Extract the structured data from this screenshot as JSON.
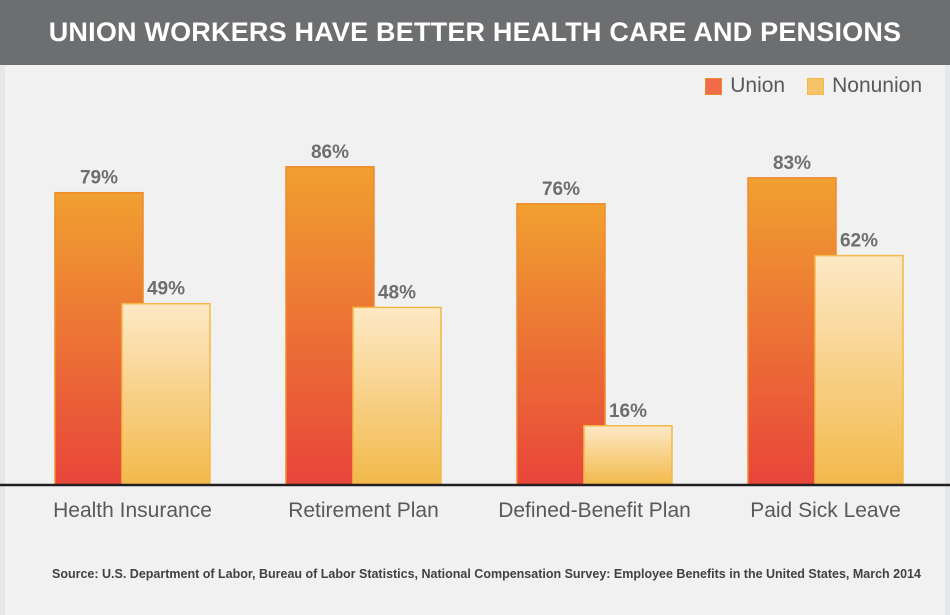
{
  "title": "UNION WORKERS HAVE BETTER HEALTH CARE AND PENSIONS",
  "source": "Source: U.S. Department of Labor, Bureau of Labor Statistics, National Compensation Survey: Employee Benefits in the United States, March 2014",
  "colors": {
    "union_top": "#f0a030",
    "union_bottom": "#e8453a",
    "union_stroke": "#ef8a2a",
    "nonunion_top": "#fde9c6",
    "nonunion_bottom": "#f2b94a",
    "nonunion_stroke": "#f4b847",
    "label": "#6d6e70",
    "axis": "#231f20"
  },
  "legend": [
    {
      "label": "Union",
      "color": "#ef6b4a"
    },
    {
      "label": "Nonunion",
      "color": "#f5c46a"
    }
  ],
  "chart_data": {
    "type": "bar",
    "title": "UNION WORKERS HAVE BETTER HEALTH CARE AND PENSIONS",
    "categories": [
      "Health Insurance",
      "Retirement Plan",
      "Defined-Benefit Plan",
      "Paid Sick Leave"
    ],
    "series": [
      {
        "name": "Union",
        "values": [
          79,
          86,
          76,
          83
        ],
        "labels": [
          "79%",
          "86%",
          "76%",
          "83%"
        ]
      },
      {
        "name": "Nonunion",
        "values": [
          49,
          48,
          16,
          62
        ],
        "labels": [
          "49%",
          "48%",
          "16%",
          "62%"
        ]
      }
    ],
    "ylim": [
      0,
      100
    ],
    "grid": false,
    "legend_position": "top-right"
  }
}
